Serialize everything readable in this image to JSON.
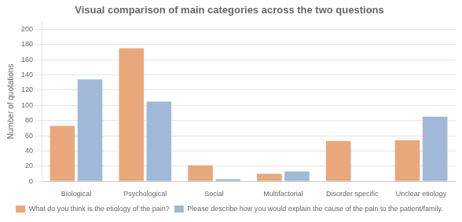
{
  "chart_data": {
    "type": "bar",
    "title": "Visual comparison of main categories across the two questions",
    "categories": [
      "Biological",
      "Psychological",
      "Social",
      "Multifactorial",
      "Disorder specific",
      "Unclear etiology"
    ],
    "series": [
      {
        "name": "What do you think is the etiology of the pain?",
        "color": "#E8A87C",
        "values": [
          73,
          175,
          21,
          10,
          53,
          54
        ]
      },
      {
        "name": "Please describe how you would explain the cause of the pain to the patient/family.",
        "color": "#A2B8D8",
        "values": [
          134,
          105,
          3,
          13,
          0,
          85
        ]
      }
    ],
    "ylabel": "Number of quotations",
    "ylim": [
      0,
      210
    ],
    "yticks": [
      0,
      20,
      40,
      60,
      80,
      100,
      120,
      140,
      160,
      180,
      200
    ],
    "grid": true,
    "legend": "bottom"
  }
}
